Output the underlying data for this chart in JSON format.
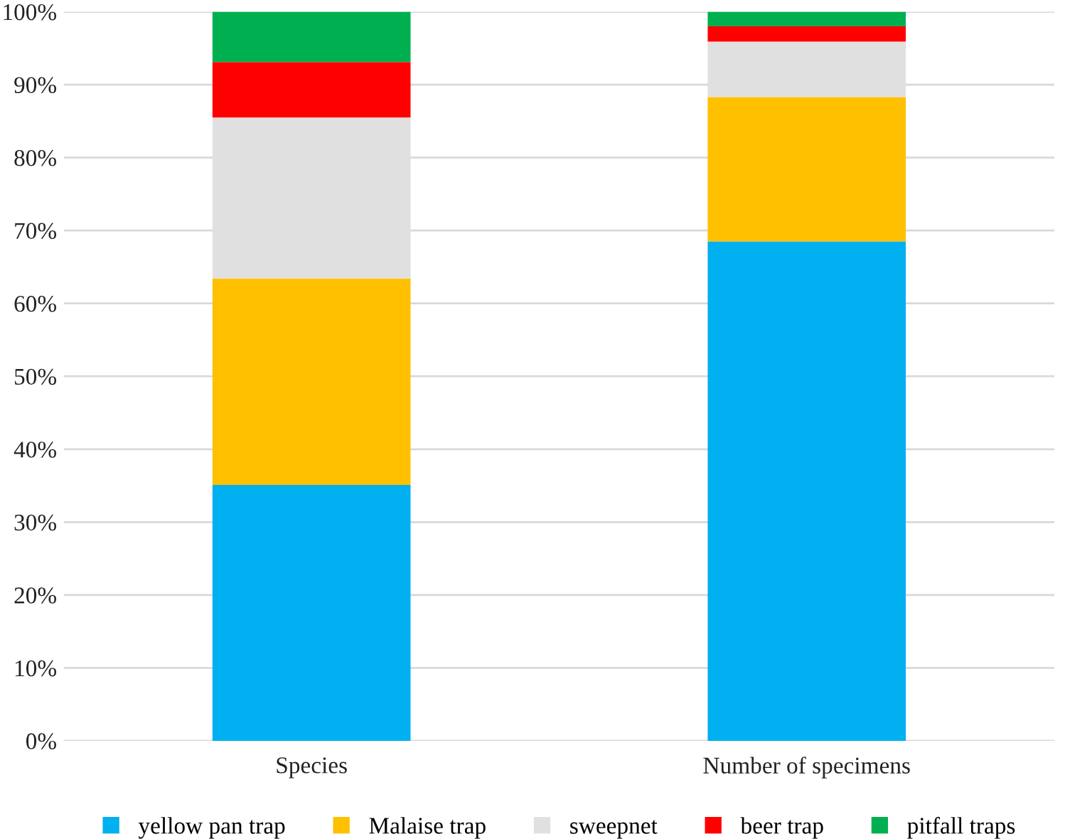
{
  "chart_data": {
    "type": "bar",
    "stacked": true,
    "categories": [
      "Species",
      "Number of specimens"
    ],
    "series": [
      {
        "name": "yellow pan trap",
        "color": "#00b0f0",
        "values": [
          35.1,
          68.5
        ]
      },
      {
        "name": "Malaise trap",
        "color": "#ffc000",
        "values": [
          28.3,
          19.8
        ]
      },
      {
        "name": "sweepnet",
        "color": "#e0e0e0",
        "values": [
          22.1,
          7.6
        ]
      },
      {
        "name": "beer trap",
        "color": "#ff0000",
        "values": [
          7.6,
          2.1
        ]
      },
      {
        "name": "pitfall traps",
        "color": "#00b050",
        "values": [
          6.9,
          2.0
        ]
      }
    ],
    "ylim": [
      0,
      100
    ],
    "yticks": [
      {
        "value": 0,
        "label": "0%"
      },
      {
        "value": 10,
        "label": "10%"
      },
      {
        "value": 20,
        "label": "20%"
      },
      {
        "value": 30,
        "label": "30%"
      },
      {
        "value": 40,
        "label": "40%"
      },
      {
        "value": 50,
        "label": "50%"
      },
      {
        "value": 60,
        "label": "60%"
      },
      {
        "value": 70,
        "label": "70%"
      },
      {
        "value": 80,
        "label": "80%"
      },
      {
        "value": 90,
        "label": "90%"
      },
      {
        "value": 100,
        "label": "100%"
      }
    ],
    "grid": "y",
    "legend": "bottom"
  }
}
